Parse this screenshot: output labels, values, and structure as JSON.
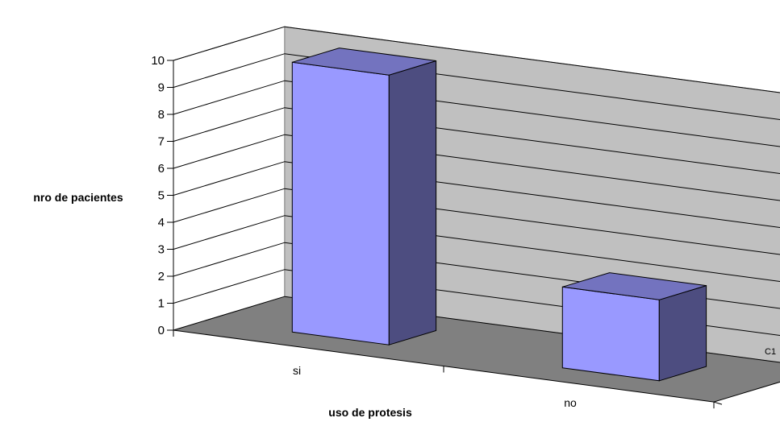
{
  "chart_data": {
    "type": "bar",
    "style": "3d-column",
    "categories": [
      "si",
      "no"
    ],
    "series": [
      {
        "name": "C1",
        "values": [
          10,
          3
        ]
      }
    ],
    "xlabel": "uso de protesis",
    "ylabel": "nro de pacientes",
    "ylim": [
      0,
      10
    ],
    "yticks": [
      "0",
      "1",
      "2",
      "3",
      "4",
      "5",
      "6",
      "7",
      "8",
      "9",
      "10"
    ],
    "grid": true,
    "legend": "none"
  },
  "colors": {
    "bar_front": "#9999ff",
    "bar_side": "#4d4d80",
    "bar_top": "#7373bf",
    "back_wall": "#c0c0c0",
    "floor": "#808080",
    "side_wall": "#ffffff",
    "line": "#000000"
  }
}
